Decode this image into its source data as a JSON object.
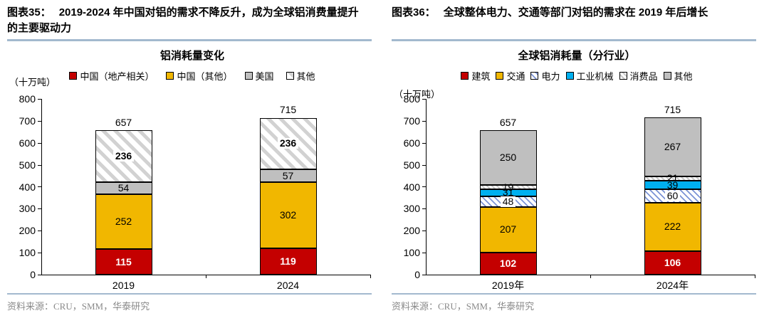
{
  "panels": [
    {
      "caption_label": "图表35：",
      "caption_text": "2019-2024 年中国对铝的需求不降反升，成为全球铝消费量提升的主要驱动力",
      "source": "资料来源：CRU，SMM，华泰研究"
    },
    {
      "caption_label": "图表36：",
      "caption_text": "全球整体电力、交通等部门对铝的需求在 2019 年后增长",
      "source": "资料来源：CRU，SMM，华泰研究"
    }
  ],
  "chart_data": [
    {
      "type": "bar",
      "stacked": true,
      "title": "铝消耗量变化",
      "ylabel": "（十万吨）",
      "ylim": [
        0,
        800
      ],
      "ytick_step": 100,
      "grid": false,
      "legend_position": "top",
      "categories": [
        "2019",
        "2024"
      ],
      "totals": [
        657,
        715
      ],
      "series": [
        {
          "name": "中国（地产相关）",
          "fill": "#c40000",
          "values": [
            115,
            119
          ],
          "label_color": "#ffffff",
          "label_bold": true
        },
        {
          "name": "中国（其他）",
          "fill": "#f1b700",
          "values": [
            252,
            302
          ]
        },
        {
          "name": "美国",
          "fill": "#bfbfbf",
          "values": [
            54,
            57
          ]
        },
        {
          "name": "其他",
          "fill": "hatch-gray",
          "values": [
            236,
            236
          ],
          "label_bold": true,
          "label_chip": true
        }
      ]
    },
    {
      "type": "bar",
      "stacked": true,
      "title": "全球铝消耗量（分行业）",
      "ylabel": "（十万吨）",
      "ylim": [
        0,
        800
      ],
      "ytick_step": 100,
      "grid": false,
      "legend_position": "top",
      "categories": [
        "2019年",
        "2024年"
      ],
      "totals": [
        657,
        715
      ],
      "series": [
        {
          "name": "建筑",
          "fill": "#c40000",
          "values": [
            102,
            106
          ],
          "label_color": "#ffffff",
          "label_bold": true
        },
        {
          "name": "交通",
          "fill": "#f1b700",
          "values": [
            207,
            222
          ]
        },
        {
          "name": "电力",
          "fill": "hatch-blue",
          "values": [
            48,
            60
          ],
          "label_chip": true
        },
        {
          "name": "工业机械",
          "fill": "#00b0f0",
          "values": [
            31,
            39
          ]
        },
        {
          "name": "消费品",
          "fill": "hatch-light",
          "values": [
            19,
            21
          ]
        },
        {
          "name": "其他",
          "fill": "#bfbfbf",
          "values": [
            250,
            267
          ]
        }
      ]
    }
  ],
  "colors": {
    "rule_blue": "#a3b9ce",
    "source_gray": "#8a8a8a",
    "red": "#c40000",
    "gold": "#f1b700",
    "gray": "#bfbfbf",
    "blue": "#00b0f0"
  }
}
